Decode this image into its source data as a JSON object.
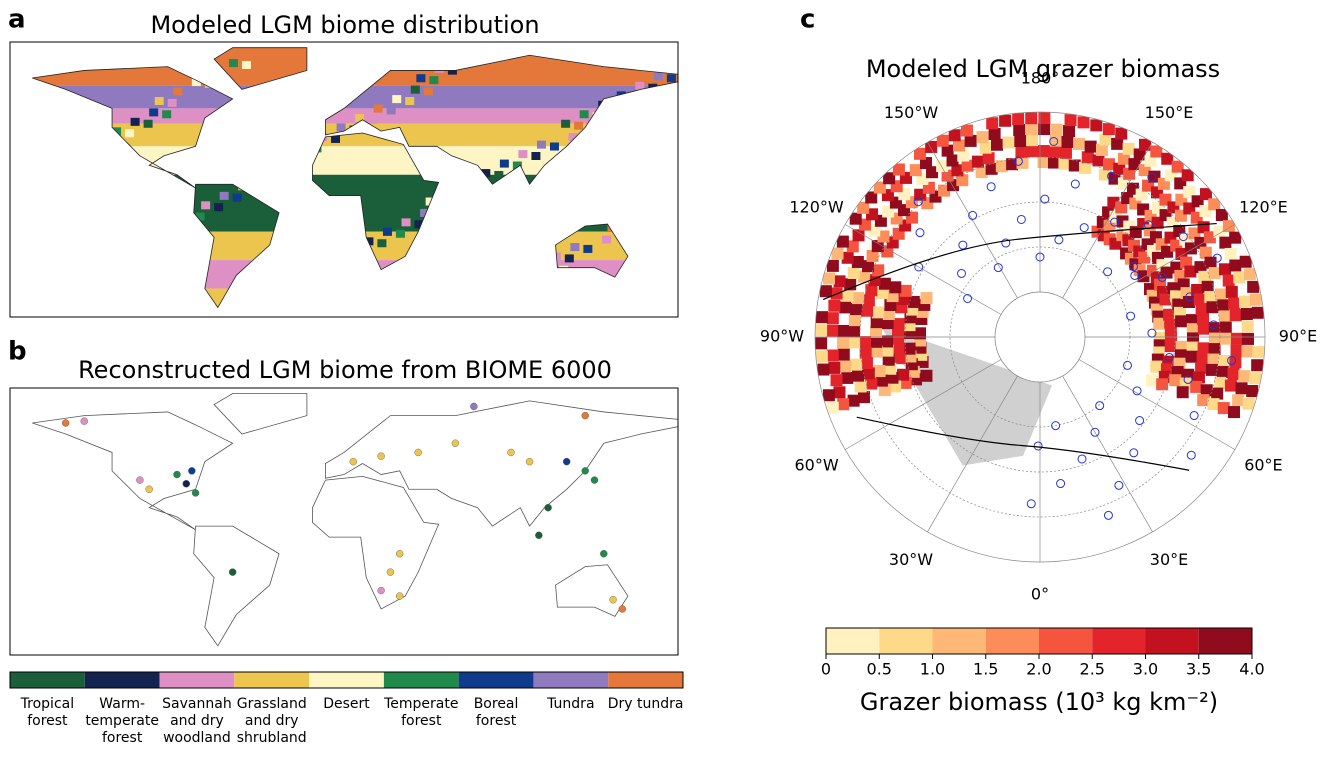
{
  "panel_a": {
    "letter": "a",
    "title": "Modeled LGM biome distribution"
  },
  "panel_b": {
    "letter": "b",
    "title": "Reconstructed LGM biome from BIOME 6000"
  },
  "legend": {
    "items": [
      {
        "label": [
          "Tropical",
          "forest"
        ],
        "color": "#1a5e3a"
      },
      {
        "label": [
          "Warm-",
          "temperate",
          "forest"
        ],
        "color": "#14224f"
      },
      {
        "label": [
          "Savannah",
          "and dry",
          "woodland"
        ],
        "color": "#de8fc4"
      },
      {
        "label": [
          "Grassland",
          "and dry",
          "shrubland"
        ],
        "color": "#ecc54f"
      },
      {
        "label": [
          "Desert"
        ],
        "color": "#fdf6c4"
      },
      {
        "label": [
          "Temperate",
          "forest"
        ],
        "color": "#1f8a4c"
      },
      {
        "label": [
          "Boreal",
          "forest"
        ],
        "color": "#0f3b8c"
      },
      {
        "label": [
          "Tundra"
        ],
        "color": "#8f7ac0"
      },
      {
        "label": [
          "Dry tundra"
        ],
        "color": "#e4773a"
      }
    ]
  },
  "panel_c": {
    "letter": "c",
    "title": "Modeled LGM grazer biomass",
    "longitudes": [
      "180°",
      "150°E",
      "120°E",
      "90°E",
      "60°E",
      "30°E",
      "0°",
      "30°W",
      "60°W",
      "90°W",
      "120°W",
      "150°W"
    ]
  },
  "colorbar": {
    "label": "Grazer biomass (10³ kg km⁻²)",
    "lim": [
      0,
      4
    ],
    "ticks": [
      0,
      0.5,
      {
        "value": 1,
        "label": "1.0"
      },
      1.5,
      {
        "value": 2,
        "label": "2.0"
      },
      2.5,
      {
        "value": 3,
        "label": "3.0"
      },
      3.5,
      {
        "value": 4,
        "label": "4.0"
      }
    ],
    "colors": [
      "#fff2c0",
      "#fed98a",
      "#fdb877",
      "#fc8c59",
      "#f5553f",
      "#e3242b",
      "#c2121f",
      "#900b1d"
    ]
  }
}
